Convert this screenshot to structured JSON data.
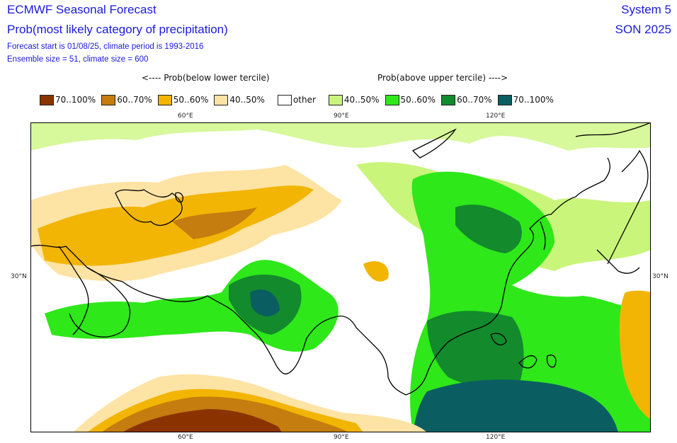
{
  "header": {
    "title": "ECMWF Seasonal Forecast",
    "subtitle": "Prob(most likely category of precipitation)",
    "forecast_line": "Forecast start is 01/08/25, climate period is 1993-2016",
    "ensemble_line": "Ensemble size = 51, climate size = 600",
    "system": "System 5",
    "season": "SON 2025"
  },
  "legend": {
    "below_header": "<---- Prob(below lower tercile)",
    "above_header": "Prob(above upper tercile) ---->",
    "items": [
      {
        "label": "70..100%",
        "color": "#8b3300"
      },
      {
        "label": "60..70%",
        "color": "#c47d0e"
      },
      {
        "label": "50..60%",
        "color": "#f2b503"
      },
      {
        "label": "40..50%",
        "color": "#fde3a4"
      },
      {
        "label": "other",
        "color": "#ffffff"
      },
      {
        "label": "40..50%",
        "color": "#c9f57a"
      },
      {
        "label": "50..60%",
        "color": "#2ee81a"
      },
      {
        "label": "60..70%",
        "color": "#138a2c"
      },
      {
        "label": "70..100%",
        "color": "#0a5e61"
      }
    ]
  },
  "axes": {
    "lon_ticks": [
      "60°E",
      "90°E",
      "120°E"
    ],
    "lat_ticks": [
      "30°N"
    ]
  }
}
